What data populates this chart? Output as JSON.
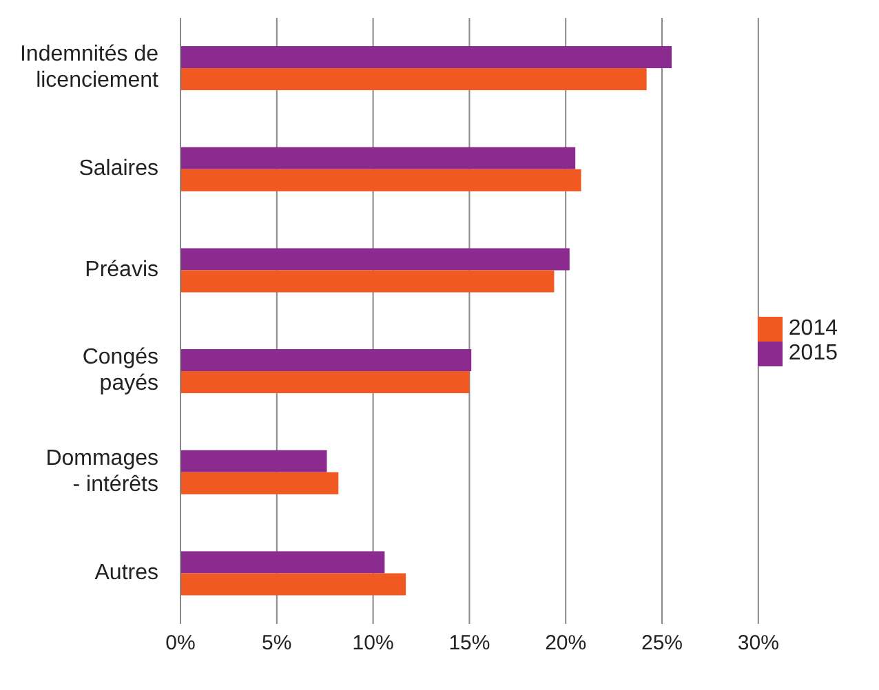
{
  "chart_data": {
    "type": "bar",
    "orientation": "horizontal",
    "categories": [
      "Indemnités de licenciement",
      "Salaires",
      "Préavis",
      "Congés payés",
      "Dommages - intérêts",
      "Autres"
    ],
    "series": [
      {
        "name": "2015",
        "color": "#8b2a8f",
        "values": [
          25.5,
          20.5,
          20.2,
          15.1,
          7.6,
          10.6
        ]
      },
      {
        "name": "2014",
        "color": "#f05a22",
        "values": [
          24.2,
          20.8,
          19.4,
          15.0,
          8.2,
          11.7
        ]
      }
    ],
    "xlim": [
      0,
      30
    ],
    "xticks": [
      {
        "value": 0,
        "label": "0%"
      },
      {
        "value": 5,
        "label": "5%"
      },
      {
        "value": 10,
        "label": "10%"
      },
      {
        "value": 15,
        "label": "15%"
      },
      {
        "value": 20,
        "label": "20%"
      },
      {
        "value": 25,
        "label": "25%"
      },
      {
        "value": 30,
        "label": "30%"
      }
    ],
    "grid": "x",
    "legend": "right"
  }
}
